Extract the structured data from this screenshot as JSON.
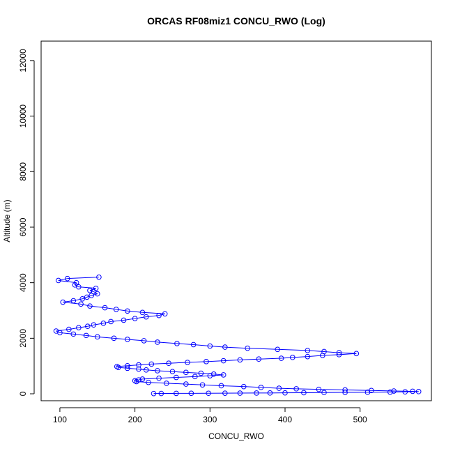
{
  "chart_data": {
    "type": "scatter",
    "title": "ORCAS RF08miz1 CONCU_RWO (Log)",
    "xlabel": "CONCU_RWO",
    "ylabel": "Altitude (m)",
    "xlim": [
      75,
      595
    ],
    "ylim": [
      -250,
      12700
    ],
    "xticks": [
      "100",
      "200",
      "300",
      "400",
      "500"
    ],
    "xtick_values": [
      100,
      200,
      300,
      400,
      500
    ],
    "yticks": [
      "0",
      "2000",
      "4000",
      "6000",
      "8000",
      "10000",
      "12000"
    ],
    "ytick_values": [
      0,
      2000,
      4000,
      6000,
      8000,
      10000,
      12000
    ],
    "grid": false,
    "marker": "open-circle",
    "connect_points": true,
    "color": "#0000ff",
    "series": [
      {
        "x": [
          152,
          110,
          98,
          122,
          120,
          125,
          148,
          140,
          145,
          150,
          142,
          136,
          130,
          118,
          104,
          128,
          140,
          160,
          175,
          190,
          210,
          240,
          232,
          215,
          200,
          185,
          168,
          158,
          145,
          137,
          125,
          112,
          95,
          100,
          118,
          135,
          150,
          172,
          190,
          212,
          230,
          256,
          278,
          300,
          320,
          350,
          390,
          430,
          452,
          472,
          495,
          472,
          450,
          430,
          410,
          395,
          365,
          340,
          318,
          295,
          270,
          245,
          222,
          205,
          190,
          176,
          178,
          190,
          205,
          215,
          230,
          250,
          268,
          288,
          305,
          318,
          300,
          280,
          255,
          232,
          210,
          205,
          200,
          202,
          218,
          242,
          268,
          290,
          315,
          345,
          368,
          392,
          415,
          445,
          480,
          515,
          545,
          570,
          578,
          560,
          540,
          510,
          480,
          452,
          425,
          400,
          380,
          362,
          340,
          320,
          298,
          275,
          255,
          235,
          225
        ],
        "y": [
          4200,
          4150,
          4080,
          4000,
          3920,
          3850,
          3800,
          3720,
          3680,
          3600,
          3540,
          3480,
          3420,
          3350,
          3300,
          3230,
          3160,
          3100,
          3040,
          2980,
          2930,
          2880,
          2820,
          2770,
          2710,
          2650,
          2600,
          2540,
          2480,
          2430,
          2380,
          2320,
          2260,
          2200,
          2150,
          2100,
          2050,
          2000,
          1960,
          1910,
          1860,
          1810,
          1770,
          1720,
          1680,
          1640,
          1600,
          1560,
          1520,
          1480,
          1450,
          1410,
          1380,
          1340,
          1310,
          1280,
          1250,
          1220,
          1190,
          1160,
          1130,
          1100,
          1070,
          1040,
          1010,
          980,
          950,
          920,
          890,
          860,
          830,
          800,
          770,
          740,
          710,
          680,
          650,
          620,
          590,
          560,
          530,
          500,
          470,
          440,
          410,
          380,
          350,
          320,
          290,
          260,
          230,
          200,
          180,
          160,
          140,
          120,
          100,
          90,
          80,
          70,
          60,
          55,
          50,
          45,
          40,
          35,
          30,
          28,
          25,
          22,
          20,
          18,
          15,
          12,
          10
        ]
      }
    ]
  }
}
